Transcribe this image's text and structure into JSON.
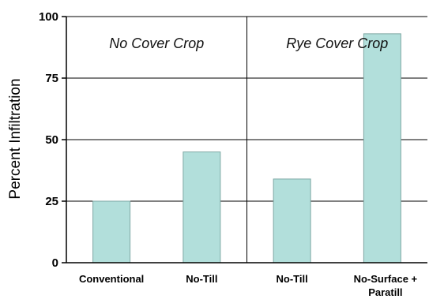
{
  "chart_data": {
    "type": "bar",
    "ylabel": "Percent Infiltration",
    "ylim": [
      0,
      100
    ],
    "yticks": [
      "0",
      "25",
      "50",
      "75",
      "100"
    ],
    "grid": true,
    "categories": [
      {
        "lines": [
          "Conventional"
        ],
        "group": "No Cover Crop",
        "value": 25
      },
      {
        "lines": [
          "No-Till"
        ],
        "group": "No Cover Crop",
        "value": 45
      },
      {
        "lines": [
          "No-Till"
        ],
        "group": "Rye Cover Crop",
        "value": 34
      },
      {
        "lines": [
          "No-Surface +",
          "Paratill"
        ],
        "group": "Rye Cover Crop",
        "value": 93
      }
    ],
    "groups": [
      {
        "label": "No Cover Crop",
        "span": [
          0,
          1
        ]
      },
      {
        "label": "Rye Cover Crop",
        "span": [
          2,
          3
        ]
      }
    ],
    "colors": {
      "bar_fill": "#b2dfdb",
      "bar_stroke": "#7fa8a4",
      "grid": "#000000",
      "axis": "#000000"
    }
  }
}
